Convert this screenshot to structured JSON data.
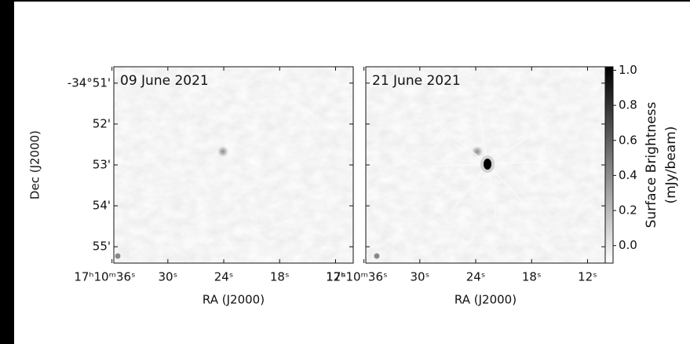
{
  "chart_data": [
    {
      "type": "image",
      "title": "09 June 2021",
      "xlabel": "RA (J2000)",
      "ylabel": "Dec (J2000)",
      "xlim": [
        35.8,
        10.1
      ],
      "xticks": [
        {
          "value": 36,
          "label": "17ʰ10ᵐ36ˢ"
        },
        {
          "value": 30,
          "label": "30ˢ"
        },
        {
          "value": 24,
          "label": "24ˢ"
        },
        {
          "value": 18,
          "label": "18ˢ"
        },
        {
          "value": 12,
          "label": "12ˢ"
        }
      ],
      "ylim": [
        50.6,
        55.4
      ],
      "yticks": [
        {
          "value": 51,
          "label": "-34°51'"
        },
        {
          "value": 52,
          "label": "52'"
        },
        {
          "value": 53,
          "label": "53'"
        },
        {
          "value": 54,
          "label": "54'"
        },
        {
          "value": 55,
          "label": "55'"
        }
      ]
    },
    {
      "type": "image",
      "title": "21 June 2021",
      "xlabel": "RA (J2000)",
      "xlim": [
        35.8,
        10.1
      ],
      "xticks": [
        {
          "value": 36,
          "label": "17ʰ10ᵐ36ˢ"
        },
        {
          "value": 30,
          "label": "30ˢ"
        },
        {
          "value": 24,
          "label": "24ˢ"
        },
        {
          "value": 18,
          "label": "18ˢ"
        },
        {
          "value": 12,
          "label": "12ˢ"
        }
      ],
      "ylim": [
        50.6,
        55.4
      ]
    }
  ],
  "colorbar": {
    "label": [
      "Surface Brightness",
      "(mJy/beam)"
    ],
    "ylim": [
      -0.1,
      1.02
    ],
    "yticks": [
      {
        "value": 0,
        "label": "0.0"
      },
      0.2,
      0.4,
      0.6,
      0.8,
      {
        "value": 1,
        "label": "1.0"
      }
    ]
  }
}
